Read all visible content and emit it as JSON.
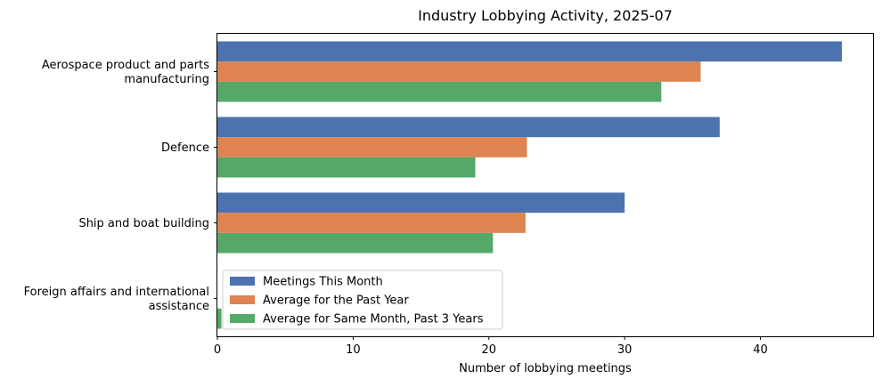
{
  "chart_data": {
    "type": "bar",
    "orientation": "horizontal",
    "title": "Industry Lobbying Activity, 2025-07",
    "xlabel": "Number of lobbying meetings",
    "ylabel": "",
    "xlim": [
      0,
      48.3
    ],
    "xticks": [
      "0",
      "10",
      "20",
      "30",
      "40"
    ],
    "grid": false,
    "legend_position": "lower-left",
    "categories": [
      [
        "Aerospace product and parts",
        "manufacturing"
      ],
      [
        "Defence"
      ],
      [
        "Ship and boat building"
      ],
      [
        "Foreign affairs and international",
        "assistance"
      ]
    ],
    "series": [
      {
        "name": "Meetings This Month",
        "color": "#4c72b0",
        "values": [
          46,
          37,
          30,
          0
        ]
      },
      {
        "name": "Average for the Past Year",
        "color": "#dd8452",
        "values": [
          35.6,
          22.8,
          22.7,
          0
        ]
      },
      {
        "name": "Average for Same Month, Past 3 Years",
        "color": "#55a868",
        "values": [
          32.7,
          19,
          20.3,
          0.3
        ]
      }
    ]
  }
}
